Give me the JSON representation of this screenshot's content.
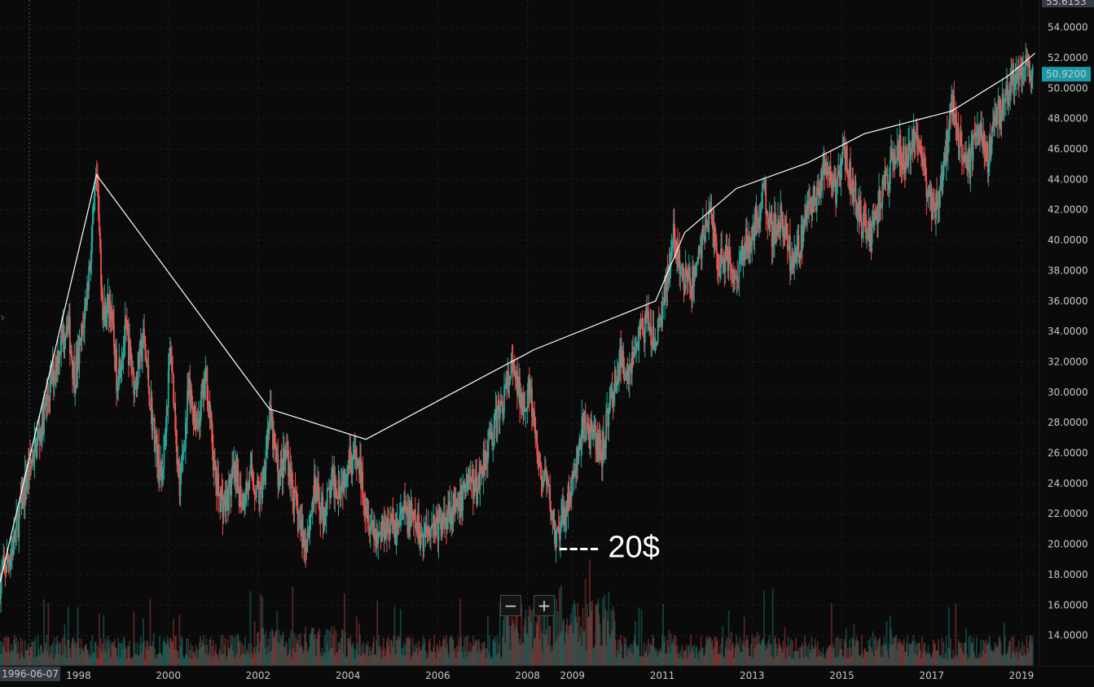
{
  "colors": {
    "background": "#0a0a0a",
    "grid": "#1f1f1f",
    "up": "#26a69a",
    "down": "#ef5350",
    "trendline": "#ffffff",
    "last_price_badge": "#1a9aa8",
    "axis_badge": "#363a45"
  },
  "chart_data": {
    "type": "candlestick",
    "x_tick_labels": [
      "1998",
      "2000",
      "2002",
      "2004",
      "2006",
      "2008",
      "2009",
      "2011",
      "2013",
      "2015",
      "2017",
      "2019"
    ],
    "crosshair_date_label": "1996-06-07",
    "y_tick_labels": [
      "14.0000",
      "16.0000",
      "18.0000",
      "20.0000",
      "22.0000",
      "24.0000",
      "26.0000",
      "28.0000",
      "30.0000",
      "32.0000",
      "34.0000",
      "36.0000",
      "38.0000",
      "40.0000",
      "42.0000",
      "44.0000",
      "46.0000",
      "48.0000",
      "50.0000",
      "52.0000",
      "54.0000"
    ],
    "y_axis_top_label": "55.6153",
    "last_price_label": "50.9200",
    "ylim": [
      12.0,
      55.8
    ],
    "xlim": [
      1996.3,
      2019.45
    ],
    "grid": true,
    "price_path": [
      [
        1996.3,
        17.5
      ],
      [
        1996.6,
        20.0
      ],
      [
        1996.9,
        24.5
      ],
      [
        1997.2,
        27.5
      ],
      [
        1997.5,
        31.5
      ],
      [
        1997.8,
        35.0
      ],
      [
        1997.95,
        31.0
      ],
      [
        1998.1,
        33.0
      ],
      [
        1998.3,
        38.5
      ],
      [
        1998.45,
        44.0
      ],
      [
        1998.6,
        35.0
      ],
      [
        1998.75,
        36.0
      ],
      [
        1998.9,
        31.0
      ],
      [
        1999.1,
        34.0
      ],
      [
        1999.3,
        30.5
      ],
      [
        1999.5,
        33.5
      ],
      [
        1999.7,
        28.0
      ],
      [
        1999.9,
        24.0
      ],
      [
        2000.1,
        33.0
      ],
      [
        2000.3,
        23.5
      ],
      [
        2000.5,
        30.0
      ],
      [
        2000.7,
        28.0
      ],
      [
        2000.9,
        31.0
      ],
      [
        2001.1,
        24.0
      ],
      [
        2001.3,
        22.5
      ],
      [
        2001.5,
        24.5
      ],
      [
        2001.7,
        23.0
      ],
      [
        2001.9,
        24.5
      ],
      [
        2002.1,
        23.0
      ],
      [
        2002.3,
        28.5
      ],
      [
        2002.5,
        24.5
      ],
      [
        2002.7,
        26.0
      ],
      [
        2002.9,
        22.0
      ],
      [
        2003.1,
        20.0
      ],
      [
        2003.3,
        23.5
      ],
      [
        2003.5,
        22.0
      ],
      [
        2003.7,
        24.0
      ],
      [
        2003.9,
        24.0
      ],
      [
        2004.1,
        26.0
      ],
      [
        2004.3,
        25.0
      ],
      [
        2004.5,
        22.0
      ],
      [
        2004.7,
        20.5
      ],
      [
        2004.9,
        21.5
      ],
      [
        2005.1,
        21.0
      ],
      [
        2005.3,
        22.0
      ],
      [
        2005.5,
        21.5
      ],
      [
        2005.7,
        20.5
      ],
      [
        2005.9,
        21.5
      ],
      [
        2006.1,
        21.0
      ],
      [
        2006.3,
        22.5
      ],
      [
        2006.5,
        22.0
      ],
      [
        2006.7,
        24.5
      ],
      [
        2006.9,
        23.5
      ],
      [
        2007.1,
        26.0
      ],
      [
        2007.3,
        27.5
      ],
      [
        2007.5,
        29.5
      ],
      [
        2007.7,
        31.5
      ],
      [
        2007.9,
        29.5
      ],
      [
        2008.1,
        30.0
      ],
      [
        2008.3,
        25.0
      ],
      [
        2008.5,
        23.5
      ],
      [
        2008.7,
        20.0
      ],
      [
        2008.9,
        22.5
      ],
      [
        2009.1,
        24.5
      ],
      [
        2009.3,
        28.0
      ],
      [
        2009.5,
        27.0
      ],
      [
        2009.7,
        26.0
      ],
      [
        2009.9,
        29.5
      ],
      [
        2010.1,
        32.0
      ],
      [
        2010.3,
        31.5
      ],
      [
        2010.5,
        33.5
      ],
      [
        2010.7,
        34.5
      ],
      [
        2010.9,
        33.0
      ],
      [
        2011.1,
        36.5
      ],
      [
        2011.3,
        40.0
      ],
      [
        2011.5,
        37.5
      ],
      [
        2011.7,
        37.0
      ],
      [
        2011.9,
        39.5
      ],
      [
        2012.1,
        42.0
      ],
      [
        2012.3,
        38.5
      ],
      [
        2012.5,
        39.0
      ],
      [
        2012.7,
        37.5
      ],
      [
        2012.9,
        40.0
      ],
      [
        2013.1,
        40.5
      ],
      [
        2013.3,
        43.5
      ],
      [
        2013.5,
        40.5
      ],
      [
        2013.7,
        41.5
      ],
      [
        2013.9,
        39.0
      ],
      [
        2014.1,
        39.5
      ],
      [
        2014.3,
        42.0
      ],
      [
        2014.5,
        43.0
      ],
      [
        2014.7,
        45.0
      ],
      [
        2014.9,
        43.0
      ],
      [
        2015.1,
        46.0
      ],
      [
        2015.3,
        43.5
      ],
      [
        2015.5,
        41.0
      ],
      [
        2015.7,
        40.5
      ],
      [
        2015.9,
        42.5
      ],
      [
        2016.1,
        44.5
      ],
      [
        2016.3,
        46.0
      ],
      [
        2016.5,
        45.0
      ],
      [
        2016.7,
        47.5
      ],
      [
        2016.9,
        44.0
      ],
      [
        2017.1,
        42.0
      ],
      [
        2017.3,
        44.5
      ],
      [
        2017.5,
        49.0
      ],
      [
        2017.7,
        46.5
      ],
      [
        2017.9,
        45.0
      ],
      [
        2018.1,
        47.5
      ],
      [
        2018.3,
        45.5
      ],
      [
        2018.5,
        48.5
      ],
      [
        2018.7,
        49.0
      ],
      [
        2018.9,
        50.5
      ],
      [
        2019.1,
        51.5
      ],
      [
        2019.3,
        50.9
      ]
    ],
    "trendline": [
      [
        1996.3,
        17.5
      ],
      [
        1998.45,
        44.3
      ],
      [
        2002.3,
        28.9
      ],
      [
        2004.45,
        26.9
      ],
      [
        2008.2,
        32.8
      ],
      [
        2010.9,
        36.0
      ],
      [
        2011.55,
        40.5
      ],
      [
        2012.7,
        43.4
      ],
      [
        2014.3,
        45.1
      ],
      [
        2015.55,
        47.0
      ],
      [
        2017.5,
        48.5
      ],
      [
        2018.75,
        50.8
      ],
      [
        2019.35,
        52.3
      ]
    ],
    "annotation": {
      "text": "---- 20$",
      "x": 2008.95,
      "y": 19.8
    }
  },
  "zoom": {
    "minus": "−",
    "plus": "+"
  }
}
